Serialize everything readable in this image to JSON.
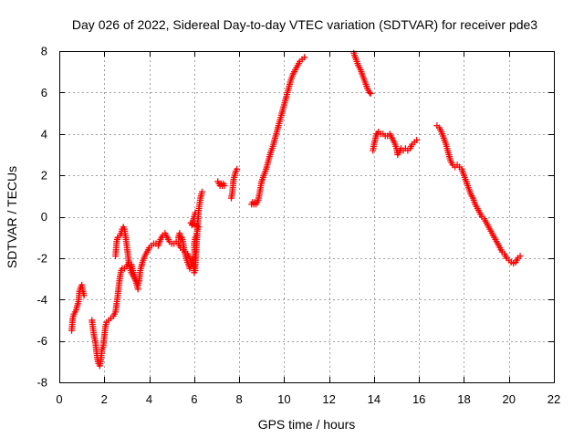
{
  "chart_data": {
    "type": "scatter",
    "title": "Day 026 of 2022, Sidereal Day-to-day VTEC variation (SDTVAR) for receiver pde3",
    "xlabel": "GPS time / hours",
    "ylabel": "SDTVAR / TECUs",
    "xlim": [
      0,
      22
    ],
    "ylim": [
      -8,
      8
    ],
    "xticks": [
      "0",
      "2",
      "4",
      "6",
      "8",
      "10",
      "12",
      "14",
      "16",
      "18",
      "20",
      "22"
    ],
    "yticks": [
      "-8",
      "-6",
      "-4",
      "-2",
      "0",
      "2",
      "4",
      "6",
      "8"
    ],
    "grid": true,
    "marker": "+",
    "color": "#ff0000",
    "series": [
      {
        "name": "pde3",
        "segments": [
          [
            [
              0.55,
              -5.5
            ],
            [
              0.6,
              -4.9
            ],
            [
              0.65,
              -4.7
            ],
            [
              0.7,
              -4.6
            ],
            [
              0.75,
              -4.5
            ],
            [
              0.8,
              -4.3
            ],
            [
              0.85,
              -4.1
            ],
            [
              0.9,
              -3.6
            ],
            [
              0.95,
              -3.4
            ],
            [
              1.0,
              -3.3
            ],
            [
              1.05,
              -3.6
            ],
            [
              1.1,
              -3.8
            ]
          ],
          [
            [
              1.45,
              -5.0
            ],
            [
              1.5,
              -5.4
            ],
            [
              1.55,
              -5.8
            ],
            [
              1.6,
              -6.0
            ],
            [
              1.65,
              -6.5
            ],
            [
              1.7,
              -6.9
            ],
            [
              1.75,
              -7.1
            ],
            [
              1.8,
              -7.2
            ],
            [
              1.85,
              -6.9
            ],
            [
              1.9,
              -6.4
            ],
            [
              1.95,
              -6.3
            ],
            [
              2.0,
              -5.8
            ],
            [
              2.05,
              -5.3
            ],
            [
              2.1,
              -5.1
            ],
            [
              2.2,
              -5.0
            ],
            [
              2.3,
              -4.9
            ],
            [
              2.4,
              -4.8
            ],
            [
              2.5,
              -4.6
            ],
            [
              2.55,
              -4.2
            ],
            [
              2.6,
              -3.8
            ],
            [
              2.65,
              -3.3
            ],
            [
              2.7,
              -2.9
            ],
            [
              2.75,
              -2.6
            ],
            [
              2.8,
              -2.5
            ],
            [
              2.9,
              -2.5
            ],
            [
              3.0,
              -2.4
            ],
            [
              3.1,
              -2.2
            ],
            [
              3.2,
              -2.3
            ],
            [
              3.3,
              -2.7
            ],
            [
              3.4,
              -3.0
            ],
            [
              3.5,
              -3.3
            ],
            [
              3.55,
              -3.1
            ],
            [
              3.6,
              -2.6
            ],
            [
              3.7,
              -2.2
            ],
            [
              3.8,
              -1.9
            ],
            [
              3.9,
              -1.7
            ],
            [
              4.0,
              -1.5
            ],
            [
              4.1,
              -1.4
            ],
            [
              4.2,
              -1.3
            ],
            [
              4.3,
              -1.3
            ],
            [
              4.4,
              -1.4
            ],
            [
              4.5,
              -1.1
            ],
            [
              4.6,
              -0.9
            ],
            [
              4.7,
              -0.8
            ],
            [
              4.8,
              -1.0
            ],
            [
              4.9,
              -1.2
            ],
            [
              5.0,
              -1.3
            ],
            [
              5.1,
              -1.3
            ],
            [
              5.2,
              -1.2
            ],
            [
              5.3,
              -1.3
            ],
            [
              5.4,
              -1.5
            ],
            [
              5.5,
              -1.6
            ],
            [
              5.6,
              -1.7
            ],
            [
              5.7,
              -1.8
            ],
            [
              5.8,
              -2.0
            ],
            [
              5.9,
              -2.2
            ],
            [
              6.0,
              -2.5
            ],
            [
              6.05,
              -2.3
            ],
            [
              6.1,
              -1.5
            ],
            [
              6.15,
              -0.4
            ],
            [
              6.2,
              0.3
            ],
            [
              6.25,
              0.7
            ],
            [
              6.3,
              1.0
            ],
            [
              6.35,
              1.2
            ]
          ],
          [
            [
              2.5,
              -1.9
            ],
            [
              2.55,
              -1.2
            ],
            [
              2.6,
              -1.0
            ],
            [
              2.7,
              -0.9
            ],
            [
              2.75,
              -0.8
            ],
            [
              2.8,
              -0.6
            ],
            [
              2.85,
              -0.5
            ],
            [
              2.9,
              -0.6
            ],
            [
              2.95,
              -1.0
            ],
            [
              3.0,
              -1.4
            ],
            [
              3.05,
              -1.8
            ],
            [
              3.1,
              -2.3
            ],
            [
              3.15,
              -2.5
            ],
            [
              3.2,
              -2.7
            ],
            [
              3.3,
              -2.9
            ],
            [
              3.4,
              -3.1
            ],
            [
              3.45,
              -3.3
            ],
            [
              3.5,
              -3.5
            ]
          ],
          [
            [
              5.3,
              -1.0
            ],
            [
              5.35,
              -0.8
            ],
            [
              5.4,
              -1.1
            ],
            [
              5.45,
              -1.0
            ],
            [
              5.5,
              -1.2
            ],
            [
              5.55,
              -1.6
            ],
            [
              5.6,
              -1.8
            ],
            [
              5.65,
              -2.0
            ],
            [
              5.7,
              -2.2
            ],
            [
              5.75,
              -2.3
            ],
            [
              5.8,
              -2.5
            ],
            [
              5.85,
              -2.4
            ],
            [
              5.9,
              -2.2
            ],
            [
              5.95,
              -2.0
            ],
            [
              6.0,
              -2.7
            ],
            [
              6.05,
              -2.6
            ],
            [
              6.0,
              -1.3
            ],
            [
              6.05,
              -1.0
            ],
            [
              6.1,
              -0.9
            ],
            [
              6.15,
              -0.6
            ],
            [
              6.2,
              -0.5
            ],
            [
              5.85,
              -0.3
            ],
            [
              5.9,
              -0.4
            ],
            [
              5.95,
              -0.2
            ],
            [
              6.0,
              0.0
            ],
            [
              6.05,
              0.2
            ]
          ],
          [
            [
              7.05,
              1.7
            ],
            [
              7.1,
              1.6
            ],
            [
              7.15,
              1.5
            ],
            [
              7.2,
              1.6
            ],
            [
              7.25,
              1.5
            ],
            [
              7.3,
              1.6
            ],
            [
              7.35,
              1.5
            ]
          ],
          [
            [
              7.65,
              0.9
            ],
            [
              7.7,
              1.2
            ],
            [
              7.75,
              1.8
            ],
            [
              7.8,
              2.0
            ],
            [
              7.85,
              2.2
            ],
            [
              7.9,
              2.3
            ]
          ],
          [
            [
              8.55,
              0.6
            ],
            [
              8.6,
              0.7
            ],
            [
              8.65,
              0.6
            ],
            [
              8.7,
              0.7
            ],
            [
              8.75,
              0.6
            ],
            [
              8.8,
              0.7
            ],
            [
              8.85,
              0.8
            ],
            [
              8.9,
              1.1
            ],
            [
              8.95,
              1.4
            ],
            [
              9.0,
              1.7
            ],
            [
              9.1,
              2.0
            ],
            [
              9.2,
              2.3
            ],
            [
              9.3,
              2.7
            ],
            [
              9.4,
              3.1
            ],
            [
              9.5,
              3.4
            ],
            [
              9.6,
              3.8
            ],
            [
              9.7,
              4.2
            ],
            [
              9.8,
              4.6
            ],
            [
              9.9,
              5.0
            ],
            [
              10.0,
              5.4
            ],
            [
              10.1,
              5.8
            ],
            [
              10.2,
              6.2
            ],
            [
              10.3,
              6.6
            ],
            [
              10.4,
              6.9
            ],
            [
              10.5,
              7.1
            ],
            [
              10.6,
              7.3
            ],
            [
              10.7,
              7.5
            ],
            [
              10.8,
              7.6
            ],
            [
              10.9,
              7.7
            ]
          ],
          [
            [
              13.1,
              7.9
            ],
            [
              13.2,
              7.6
            ],
            [
              13.3,
              7.3
            ],
            [
              13.4,
              7.1
            ],
            [
              13.5,
              6.8
            ],
            [
              13.6,
              6.5
            ],
            [
              13.7,
              6.2
            ],
            [
              13.8,
              6.0
            ],
            [
              13.85,
              5.95
            ]
          ],
          [
            [
              13.95,
              3.2
            ],
            [
              14.0,
              3.5
            ],
            [
              14.05,
              3.7
            ],
            [
              14.1,
              4.0
            ],
            [
              14.15,
              4.0
            ],
            [
              14.2,
              4.1
            ],
            [
              14.3,
              4.0
            ],
            [
              14.4,
              4.0
            ],
            [
              14.5,
              3.9
            ],
            [
              14.6,
              3.9
            ],
            [
              14.7,
              4.0
            ],
            [
              14.8,
              3.8
            ],
            [
              14.9,
              3.6
            ],
            [
              15.0,
              3.3
            ],
            [
              15.05,
              3.0
            ],
            [
              15.1,
              3.1
            ],
            [
              15.2,
              3.3
            ],
            [
              15.3,
              3.2
            ],
            [
              15.4,
              3.3
            ],
            [
              15.5,
              3.2
            ],
            [
              15.6,
              3.3
            ],
            [
              15.7,
              3.5
            ],
            [
              15.8,
              3.6
            ],
            [
              15.9,
              3.7
            ]
          ],
          [
            [
              16.8,
              4.4
            ],
            [
              16.9,
              4.3
            ],
            [
              17.0,
              4.1
            ],
            [
              17.1,
              3.8
            ],
            [
              17.2,
              3.5
            ],
            [
              17.3,
              3.1
            ],
            [
              17.4,
              2.7
            ],
            [
              17.5,
              2.5
            ],
            [
              17.6,
              2.4
            ],
            [
              17.7,
              2.5
            ],
            [
              17.8,
              2.4
            ],
            [
              17.9,
              2.3
            ],
            [
              18.0,
              2.0
            ],
            [
              18.1,
              1.7
            ],
            [
              18.2,
              1.4
            ],
            [
              18.3,
              1.1
            ],
            [
              18.4,
              0.9
            ],
            [
              18.5,
              0.6
            ],
            [
              18.6,
              0.4
            ],
            [
              18.7,
              0.2
            ],
            [
              18.8,
              0.0
            ],
            [
              18.9,
              -0.1
            ],
            [
              19.0,
              -0.3
            ],
            [
              19.1,
              -0.5
            ],
            [
              19.2,
              -0.7
            ],
            [
              19.3,
              -0.9
            ],
            [
              19.4,
              -1.1
            ],
            [
              19.5,
              -1.3
            ],
            [
              19.6,
              -1.5
            ],
            [
              19.7,
              -1.7
            ],
            [
              19.8,
              -1.8
            ],
            [
              19.9,
              -2.0
            ],
            [
              20.0,
              -2.1
            ],
            [
              20.1,
              -2.2
            ],
            [
              20.2,
              -2.25
            ],
            [
              20.3,
              -2.2
            ],
            [
              20.4,
              -2.0
            ],
            [
              20.5,
              -1.9
            ]
          ]
        ]
      }
    ]
  }
}
